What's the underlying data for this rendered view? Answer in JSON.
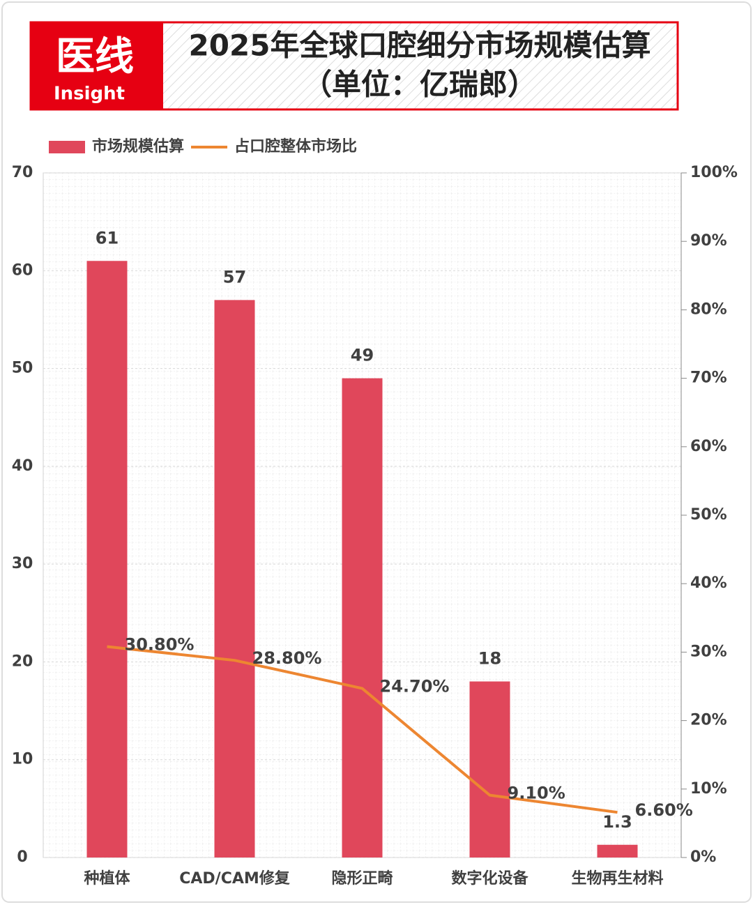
{
  "logo": {
    "text": "医线",
    "sub": "Insight"
  },
  "chart_data": {
    "type": "combo",
    "title": "2025年全球口腔细分市场规模估算",
    "subtitle": "（单位：亿瑞郎）",
    "categories": [
      "种植体",
      "CAD/CAM修复",
      "隐形正畸",
      "数字化设备",
      "生物再生材料"
    ],
    "series": [
      {
        "name": "市场规模估算",
        "type": "bar",
        "color": "#e0475b",
        "values": [
          61,
          57,
          49,
          18,
          1.3
        ]
      },
      {
        "name": "占口腔整体市场比",
        "type": "line",
        "axis": "y2",
        "color": "#ed8631",
        "values": [
          30.8,
          28.8,
          24.7,
          9.1,
          6.6
        ],
        "value_labels": [
          "30.80%",
          "28.80%",
          "24.70%",
          "9.10%",
          "6.60%"
        ]
      }
    ],
    "ylim": [
      0,
      70
    ],
    "yticks": [
      0,
      10,
      20,
      30,
      40,
      50,
      60,
      70
    ],
    "y2lim": [
      0,
      100
    ],
    "y2ticks": [
      {
        "value": 0,
        "label": "0%"
      },
      {
        "value": 10,
        "label": "10%"
      },
      {
        "value": 20,
        "label": "20%"
      },
      {
        "value": 30,
        "label": "30%"
      },
      {
        "value": 40,
        "label": "40%"
      },
      {
        "value": 50,
        "label": "50%"
      },
      {
        "value": 60,
        "label": "60%"
      },
      {
        "value": 70,
        "label": "70%"
      },
      {
        "value": 80,
        "label": "80%"
      },
      {
        "value": 90,
        "label": "90%"
      },
      {
        "value": 100,
        "label": "100%"
      }
    ],
    "grid": true,
    "legend": "top-left"
  }
}
